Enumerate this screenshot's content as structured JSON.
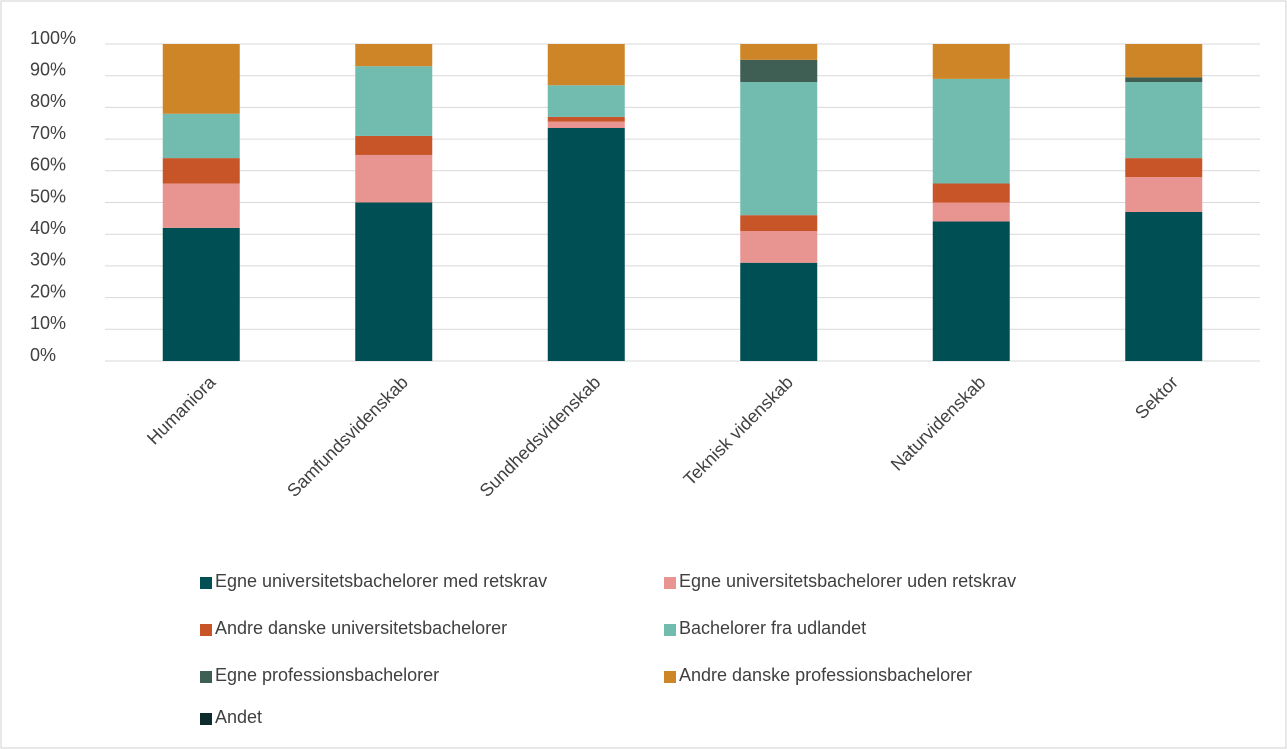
{
  "chart_data": {
    "type": "stacked_bar",
    "categories": [
      "Humaniora",
      "Samfundsvidenskab",
      "Sundhedsvidenskab",
      "Teknisk videnskab",
      "Naturvidenskab",
      "Sektor"
    ],
    "series": [
      {
        "name": "Egne universitetsbachelorer med retskrav",
        "color": "#004f54",
        "values": [
          42,
          50,
          73.5,
          31,
          44,
          47
        ]
      },
      {
        "name": "Egne universitetsbachelorer uden retskrav",
        "color": "#e89490",
        "values": [
          14,
          15,
          2,
          10,
          6,
          11
        ]
      },
      {
        "name": "Andre danske universitetsbachelorer",
        "color": "#c85528",
        "values": [
          8,
          6,
          1.5,
          5,
          6,
          6
        ]
      },
      {
        "name": "Bachelorer fra udlandet",
        "color": "#72bbaf",
        "values": [
          14,
          22,
          10,
          42,
          33,
          24
        ]
      },
      {
        "name": "Egne professionsbachelorer",
        "color": "#3f5f55",
        "values": [
          0,
          0,
          0,
          7,
          0,
          1.5
        ]
      },
      {
        "name": "Andre danske professionsbachelorer",
        "color": "#ce8527",
        "values": [
          22,
          7,
          13,
          5,
          11,
          10.5
        ]
      },
      {
        "name": "Andet",
        "color": "#0e2c2e",
        "values": [
          0,
          0,
          0,
          0,
          0,
          0
        ]
      }
    ],
    "ylim": [
      0,
      100
    ],
    "yticks": [
      {
        "value": 0,
        "label": "0%"
      },
      {
        "value": 10,
        "label": "10%"
      },
      {
        "value": 20,
        "label": "20%"
      },
      {
        "value": 30,
        "label": "30%"
      },
      {
        "value": 40,
        "label": "40%"
      },
      {
        "value": 50,
        "label": "50%"
      },
      {
        "value": 60,
        "label": "60%"
      },
      {
        "value": 70,
        "label": "70%"
      },
      {
        "value": 80,
        "label": "80%"
      },
      {
        "value": 90,
        "label": "90%"
      },
      {
        "value": 100,
        "label": "100%"
      }
    ],
    "grid": true
  }
}
